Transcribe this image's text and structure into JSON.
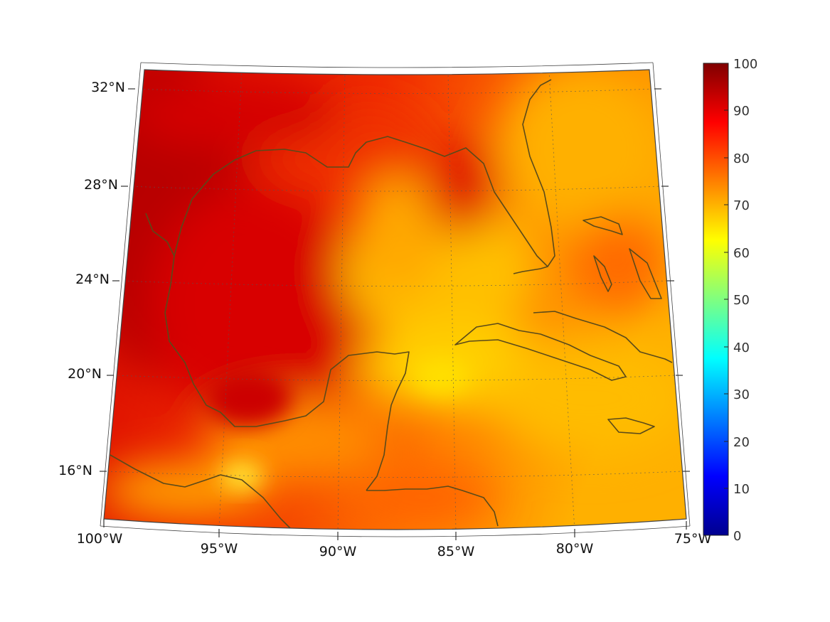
{
  "map": {
    "lon_labels": [
      "100°W",
      "95°W",
      "90°W",
      "85°W",
      "80°W",
      "75°W"
    ],
    "lat_labels": [
      "32°N",
      "28°N",
      "24°N",
      "20°N",
      "16°N"
    ],
    "coast_color": "#5a4a1a",
    "grid_style": "dotted"
  },
  "colorbar": {
    "ticks": [
      "100",
      "90",
      "80",
      "70",
      "60",
      "50",
      "40",
      "30",
      "20",
      "10",
      "0"
    ],
    "min": 0,
    "max": 100,
    "colormap": "jet"
  }
}
